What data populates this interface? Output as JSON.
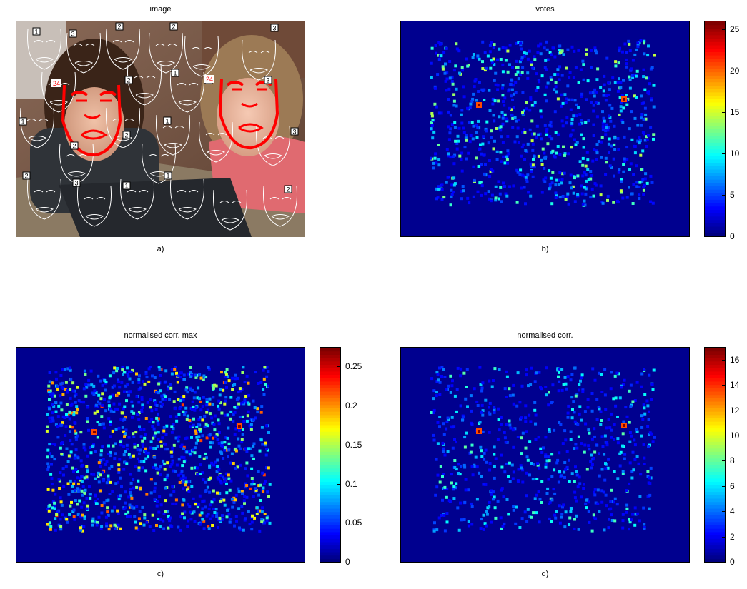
{
  "panels": [
    {
      "id": "a",
      "title": "image",
      "caption": "a)"
    },
    {
      "id": "b",
      "title": "votes",
      "caption": "b)"
    },
    {
      "id": "c",
      "title": "normalised corr. max",
      "caption": "c)"
    },
    {
      "id": "d",
      "title": "normalised corr.",
      "caption": "d)"
    }
  ],
  "photo": {
    "face_labels": [
      "1",
      "3",
      "2",
      "2",
      "3",
      "2",
      "1",
      "1",
      "1",
      "2",
      "2",
      "1",
      "3",
      "2",
      "3",
      "1",
      "1",
      "2",
      "3"
    ],
    "detected_labels": [
      "24",
      "24"
    ],
    "detection_color": "#ff0000",
    "overlay_color": "#ffffff"
  },
  "colorbars": {
    "b": {
      "ticks": [
        "25",
        "20",
        "15",
        "10",
        "5",
        "0"
      ],
      "max": 26
    },
    "c": {
      "ticks": [
        "0.25",
        "0.2",
        "0.15",
        "0.1",
        "0.05",
        "0"
      ],
      "max": 0.275
    },
    "d": {
      "ticks": [
        "16",
        "14",
        "12",
        "10",
        "8",
        "6",
        "4",
        "2",
        "0"
      ],
      "max": 17
    }
  },
  "colormap": "jet",
  "background_color": "#00008f"
}
